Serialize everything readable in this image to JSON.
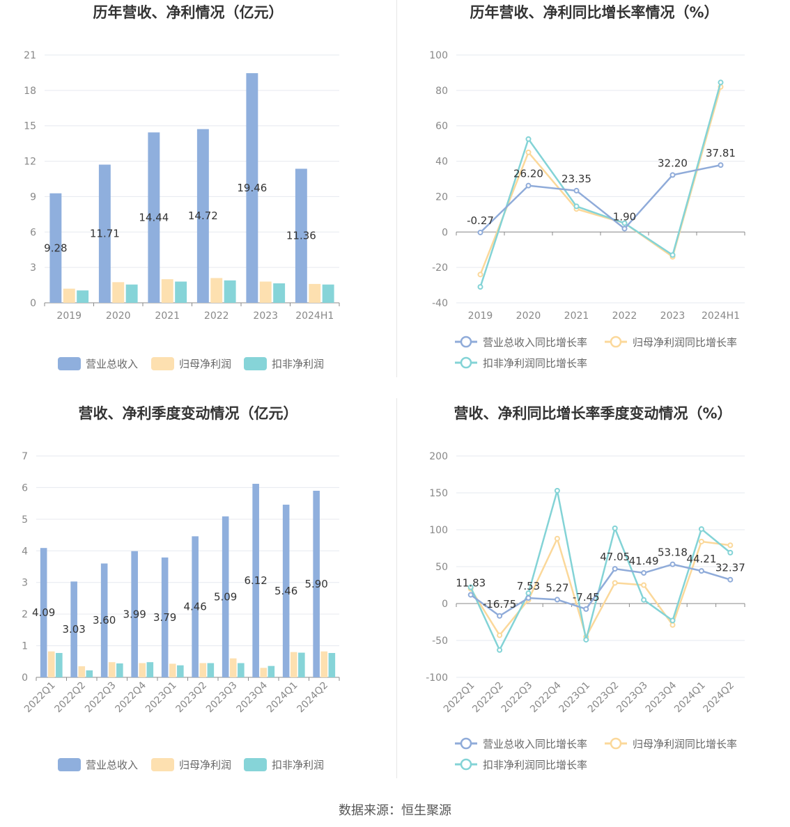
{
  "footer": {
    "source": "数据来源：恒生聚源"
  },
  "colors": {
    "revenue": "#8fafdd",
    "net_profit": "#fde0b0",
    "deducted_profit": "#86d4d8",
    "rev_line": "#8fabd9",
    "np_line": "#fbd89a",
    "dp_line": "#83d3d6"
  },
  "chart_data": [
    {
      "id": "annual_amount",
      "type": "bar",
      "title": "历年营收、净利情况（亿元）",
      "categories": [
        "2019",
        "2020",
        "2021",
        "2022",
        "2023",
        "2024H1"
      ],
      "ylim": [
        0,
        21
      ],
      "yticks": [
        "0",
        "3",
        "6",
        "9",
        "12",
        "15",
        "18",
        "21"
      ],
      "series": [
        {
          "name": "营业总收入",
          "values": [
            9.28,
            11.71,
            14.44,
            14.72,
            19.46,
            11.36
          ],
          "labels": [
            "9.28",
            "11.71",
            "14.44",
            "14.72",
            "19.46",
            "11.36"
          ]
        },
        {
          "name": "归母净利润",
          "values": [
            1.2,
            1.75,
            2.0,
            2.1,
            1.8,
            1.6
          ]
        },
        {
          "name": "扣非净利润",
          "values": [
            1.05,
            1.55,
            1.8,
            1.9,
            1.65,
            1.55
          ]
        }
      ],
      "legend": "bottom"
    },
    {
      "id": "annual_growth",
      "type": "line",
      "title": "历年营收、净利同比增长率情况（%）",
      "categories": [
        "2019",
        "2020",
        "2021",
        "2022",
        "2023",
        "2024H1"
      ],
      "ylim": [
        -40,
        100
      ],
      "yticks": [
        "-40",
        "-20",
        "0",
        "20",
        "40",
        "60",
        "80",
        "100"
      ],
      "series": [
        {
          "name": "营业总收入同比增长率",
          "values": [
            -0.27,
            26.2,
            23.35,
            1.9,
            32.2,
            37.81
          ],
          "labels": [
            "-0.27",
            "26.20",
            "23.35",
            "1.90",
            "32.20",
            "37.81"
          ]
        },
        {
          "name": "归母净利润同比增长率",
          "values": [
            -24,
            45,
            13,
            5,
            -14,
            82
          ]
        },
        {
          "name": "扣非净利润同比增长率",
          "values": [
            -31,
            52.5,
            14.5,
            5,
            -13,
            84.5
          ]
        }
      ],
      "legend": "bottom"
    },
    {
      "id": "quarterly_amount",
      "type": "bar",
      "title": "营收、净利季度变动情况（亿元）",
      "categories": [
        "2022Q1",
        "2022Q2",
        "2022Q3",
        "2022Q4",
        "2023Q1",
        "2023Q2",
        "2023Q3",
        "2023Q4",
        "2024Q1",
        "2024Q2"
      ],
      "ylim": [
        0,
        7
      ],
      "yticks": [
        "0",
        "1",
        "2",
        "3",
        "4",
        "5",
        "6",
        "7"
      ],
      "series": [
        {
          "name": "营业总收入",
          "values": [
            4.09,
            3.03,
            3.6,
            3.99,
            3.79,
            4.46,
            5.09,
            6.12,
            5.46,
            5.9
          ],
          "labels": [
            "4.09",
            "3.03",
            "3.60",
            "3.99",
            "3.79",
            "4.46",
            "5.09",
            "6.12",
            "5.46",
            "5.90"
          ]
        },
        {
          "name": "归母净利润",
          "values": [
            0.82,
            0.35,
            0.48,
            0.45,
            0.43,
            0.45,
            0.6,
            0.3,
            0.8,
            0.82
          ]
        },
        {
          "name": "扣非净利润",
          "values": [
            0.77,
            0.22,
            0.44,
            0.48,
            0.38,
            0.45,
            0.45,
            0.36,
            0.78,
            0.77
          ]
        }
      ],
      "legend": "bottom"
    },
    {
      "id": "quarterly_growth",
      "type": "line",
      "title": "营收、净利同比增长率季度变动情况（%）",
      "categories": [
        "2022Q1",
        "2022Q2",
        "2022Q3",
        "2022Q4",
        "2023Q1",
        "2023Q2",
        "2023Q3",
        "2023Q4",
        "2024Q1",
        "2024Q2"
      ],
      "ylim": [
        -100,
        200
      ],
      "yticks": [
        "-100",
        "-50",
        "0",
        "50",
        "100",
        "150",
        "200"
      ],
      "series": [
        {
          "name": "营业总收入同比增长率",
          "values": [
            11.83,
            -16.75,
            7.53,
            5.27,
            -7.45,
            47.05,
            41.49,
            53.18,
            44.21,
            32.37
          ],
          "labels": [
            "11.83",
            "-16.75",
            "7.53",
            "5.27",
            "-7.45",
            "47.05",
            "41.49",
            "53.18",
            "44.21",
            "32.37"
          ]
        },
        {
          "name": "归母净利润同比增长率",
          "values": [
            20,
            -43,
            5,
            88,
            -45,
            28,
            25,
            -29,
            84,
            79
          ]
        },
        {
          "name": "扣非净利润同比增长率",
          "values": [
            22,
            -63,
            14,
            153,
            -49,
            102,
            5,
            -23,
            101,
            69
          ]
        }
      ],
      "legend": "bottom"
    }
  ]
}
